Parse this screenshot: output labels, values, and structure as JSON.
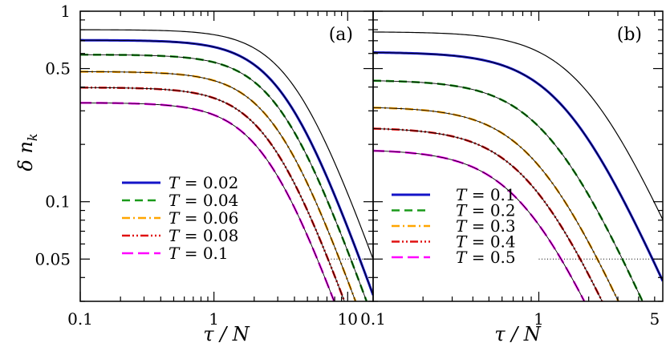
{
  "chart_data": {
    "type": "line",
    "ylabel": "δ n_k",
    "ylabel_main": "δ n",
    "ylabel_sub": "k",
    "y_scale": "log",
    "ylim": [
      0.03,
      1.0
    ],
    "y_ticks": [
      {
        "value": 1,
        "label": "1"
      },
      {
        "value": 0.5,
        "label": "0.5"
      },
      {
        "value": 0.1,
        "label": "0.1"
      },
      {
        "value": 0.05,
        "label": "0.05"
      }
    ],
    "panels": [
      {
        "label": "(a)",
        "xlabel": "τ / N",
        "x_scale": "log",
        "xlim": [
          0.1,
          15.5
        ],
        "x_ticks": [
          {
            "value": 0.1,
            "label": "0.1"
          },
          {
            "value": 1,
            "label": "1"
          },
          {
            "value": 10,
            "label": "10"
          }
        ],
        "reference_line": {
          "y": 0.05,
          "x_from": 7.5,
          "x_to": 15.5
        },
        "legend": {
          "placement": "lower-left"
        },
        "series": [
          {
            "name": "black-thin",
            "label": "",
            "color": "#000000",
            "dash": "",
            "width": 1.2,
            "A": 0.8,
            "tau0": 4.0
          },
          {
            "name": "T=0.02",
            "label": "T = 0.02",
            "color": "#1414c8",
            "dash": "",
            "width": 3.0,
            "A": 0.705,
            "tau0": 3.4
          },
          {
            "name": "T=0.04",
            "label": "T = 0.04",
            "color": "#1a9a1a",
            "dash": "10,6",
            "width": 2.6,
            "A": 0.592,
            "tau0": 3.2
          },
          {
            "name": "T=0.06",
            "label": "T = 0.06",
            "color": "#ffa500",
            "dash": "10,4,2,4",
            "width": 2.6,
            "A": 0.482,
            "tau0": 2.95
          },
          {
            "name": "T=0.08",
            "label": "T = 0.08",
            "color": "#e01010",
            "dash": "10,3,2,3,2,3",
            "width": 2.6,
            "A": 0.398,
            "tau0": 2.7
          },
          {
            "name": "T=0.1",
            "label": "T = 0.1",
            "color": "#ff00ff",
            "dash": "14,6",
            "width": 2.6,
            "A": 0.331,
            "tau0": 2.5
          }
        ]
      },
      {
        "label": "(b)",
        "xlabel": "τ / N",
        "x_scale": "log",
        "xlim": [
          0.1,
          5.6
        ],
        "x_ticks": [
          {
            "value": 0.1,
            "label": "0.1"
          },
          {
            "value": 1,
            "label": "1"
          },
          {
            "value": 5,
            "label": "5"
          }
        ],
        "reference_line": {
          "y": 0.05,
          "x_from": 1.0,
          "x_to": 5.6
        },
        "legend": {
          "placement": "lower-left"
        },
        "series": [
          {
            "name": "black-thin",
            "label": "",
            "color": "#000000",
            "dash": "",
            "width": 1.2,
            "A": 0.78,
            "tau0": 1.9
          },
          {
            "name": "T=0.1",
            "label": "T = 0.1",
            "color": "#1414c8",
            "dash": "",
            "width": 3.0,
            "A": 0.61,
            "tau0": 1.45
          },
          {
            "name": "T=0.2",
            "label": "T = 0.2",
            "color": "#1a9a1a",
            "dash": "10,6",
            "width": 2.6,
            "A": 0.435,
            "tau0": 1.15
          },
          {
            "name": "T=0.3",
            "label": "T = 0.3",
            "color": "#ffa500",
            "dash": "10,4,2,4",
            "width": 2.6,
            "A": 0.315,
            "tau0": 0.98
          },
          {
            "name": "T=0.4",
            "label": "T = 0.4",
            "color": "#e01010",
            "dash": "10,3,2,3,2,3",
            "width": 2.6,
            "A": 0.245,
            "tau0": 0.9
          },
          {
            "name": "T=0.5",
            "label": "T = 0.5",
            "color": "#ff00ff",
            "dash": "14,6",
            "width": 2.6,
            "A": 0.188,
            "tau0": 0.82
          }
        ]
      }
    ]
  }
}
